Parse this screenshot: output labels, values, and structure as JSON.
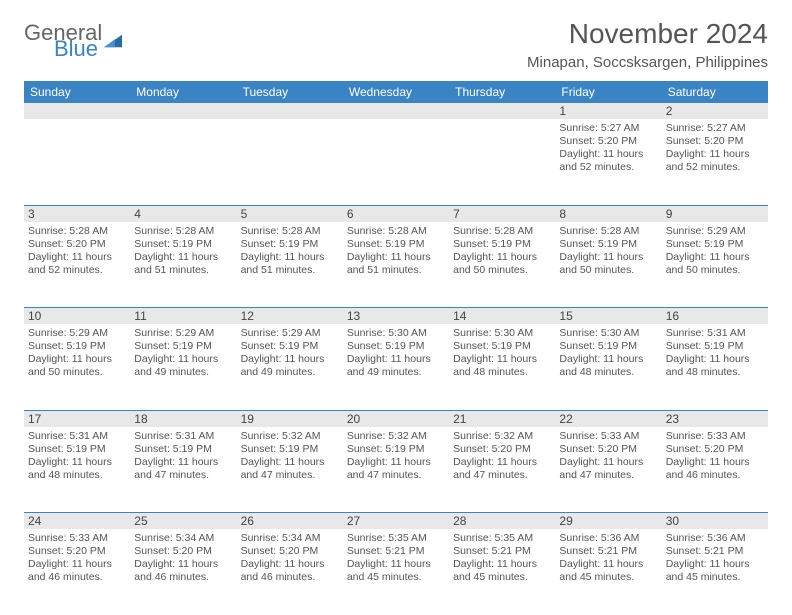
{
  "logo": {
    "text1": "General",
    "text2": "Blue",
    "tri_color": "#2b6aa8"
  },
  "header": {
    "title": "November 2024",
    "location": "Minapan, Soccsksargen, Philippines"
  },
  "colors": {
    "header_bg": "#3a84c4",
    "header_fg": "#ffffff",
    "band_bg": "#e8e8e8",
    "divider": "#3a84c4",
    "text": "#555555"
  },
  "day_names": [
    "Sunday",
    "Monday",
    "Tuesday",
    "Wednesday",
    "Thursday",
    "Friday",
    "Saturday"
  ],
  "weeks": [
    [
      null,
      null,
      null,
      null,
      null,
      {
        "n": "1",
        "sr": "5:27 AM",
        "ss": "5:20 PM",
        "dl": "11 hours and 52 minutes."
      },
      {
        "n": "2",
        "sr": "5:27 AM",
        "ss": "5:20 PM",
        "dl": "11 hours and 52 minutes."
      }
    ],
    [
      {
        "n": "3",
        "sr": "5:28 AM",
        "ss": "5:20 PM",
        "dl": "11 hours and 52 minutes."
      },
      {
        "n": "4",
        "sr": "5:28 AM",
        "ss": "5:19 PM",
        "dl": "11 hours and 51 minutes."
      },
      {
        "n": "5",
        "sr": "5:28 AM",
        "ss": "5:19 PM",
        "dl": "11 hours and 51 minutes."
      },
      {
        "n": "6",
        "sr": "5:28 AM",
        "ss": "5:19 PM",
        "dl": "11 hours and 51 minutes."
      },
      {
        "n": "7",
        "sr": "5:28 AM",
        "ss": "5:19 PM",
        "dl": "11 hours and 50 minutes."
      },
      {
        "n": "8",
        "sr": "5:28 AM",
        "ss": "5:19 PM",
        "dl": "11 hours and 50 minutes."
      },
      {
        "n": "9",
        "sr": "5:29 AM",
        "ss": "5:19 PM",
        "dl": "11 hours and 50 minutes."
      }
    ],
    [
      {
        "n": "10",
        "sr": "5:29 AM",
        "ss": "5:19 PM",
        "dl": "11 hours and 50 minutes."
      },
      {
        "n": "11",
        "sr": "5:29 AM",
        "ss": "5:19 PM",
        "dl": "11 hours and 49 minutes."
      },
      {
        "n": "12",
        "sr": "5:29 AM",
        "ss": "5:19 PM",
        "dl": "11 hours and 49 minutes."
      },
      {
        "n": "13",
        "sr": "5:30 AM",
        "ss": "5:19 PM",
        "dl": "11 hours and 49 minutes."
      },
      {
        "n": "14",
        "sr": "5:30 AM",
        "ss": "5:19 PM",
        "dl": "11 hours and 48 minutes."
      },
      {
        "n": "15",
        "sr": "5:30 AM",
        "ss": "5:19 PM",
        "dl": "11 hours and 48 minutes."
      },
      {
        "n": "16",
        "sr": "5:31 AM",
        "ss": "5:19 PM",
        "dl": "11 hours and 48 minutes."
      }
    ],
    [
      {
        "n": "17",
        "sr": "5:31 AM",
        "ss": "5:19 PM",
        "dl": "11 hours and 48 minutes."
      },
      {
        "n": "18",
        "sr": "5:31 AM",
        "ss": "5:19 PM",
        "dl": "11 hours and 47 minutes."
      },
      {
        "n": "19",
        "sr": "5:32 AM",
        "ss": "5:19 PM",
        "dl": "11 hours and 47 minutes."
      },
      {
        "n": "20",
        "sr": "5:32 AM",
        "ss": "5:19 PM",
        "dl": "11 hours and 47 minutes."
      },
      {
        "n": "21",
        "sr": "5:32 AM",
        "ss": "5:20 PM",
        "dl": "11 hours and 47 minutes."
      },
      {
        "n": "22",
        "sr": "5:33 AM",
        "ss": "5:20 PM",
        "dl": "11 hours and 47 minutes."
      },
      {
        "n": "23",
        "sr": "5:33 AM",
        "ss": "5:20 PM",
        "dl": "11 hours and 46 minutes."
      }
    ],
    [
      {
        "n": "24",
        "sr": "5:33 AM",
        "ss": "5:20 PM",
        "dl": "11 hours and 46 minutes."
      },
      {
        "n": "25",
        "sr": "5:34 AM",
        "ss": "5:20 PM",
        "dl": "11 hours and 46 minutes."
      },
      {
        "n": "26",
        "sr": "5:34 AM",
        "ss": "5:20 PM",
        "dl": "11 hours and 46 minutes."
      },
      {
        "n": "27",
        "sr": "5:35 AM",
        "ss": "5:21 PM",
        "dl": "11 hours and 45 minutes."
      },
      {
        "n": "28",
        "sr": "5:35 AM",
        "ss": "5:21 PM",
        "dl": "11 hours and 45 minutes."
      },
      {
        "n": "29",
        "sr": "5:36 AM",
        "ss": "5:21 PM",
        "dl": "11 hours and 45 minutes."
      },
      {
        "n": "30",
        "sr": "5:36 AM",
        "ss": "5:21 PM",
        "dl": "11 hours and 45 minutes."
      }
    ]
  ],
  "labels": {
    "sunrise": "Sunrise: ",
    "sunset": "Sunset: ",
    "daylight": "Daylight: "
  }
}
